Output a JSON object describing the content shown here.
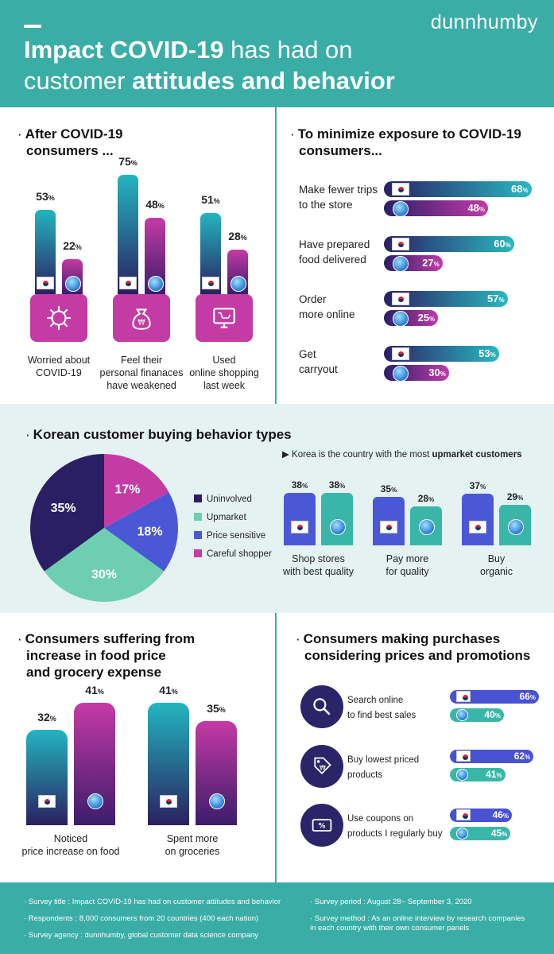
{
  "header": {
    "brand": "dunnhumby",
    "title_bold": "Impact COVID-19",
    "title_rest1": " has had on",
    "title_rest2": "customer ",
    "title_bold2": "attitudes and behavior"
  },
  "colors": {
    "teal": "#3aada6",
    "magenta": "#c43ba6",
    "navy": "#2a1f66",
    "blue": "#4a58d6"
  },
  "after_covid": {
    "heading_l1": "After COVID-19",
    "heading_l2": "consumers ...",
    "bullet": "·",
    "pct_sign": "%",
    "items": [
      {
        "label_l1": "Worried about",
        "label_l2": "COVID-19",
        "label_l3": "",
        "korea": 53,
        "global": 22,
        "icon": "virus-icon"
      },
      {
        "label_l1": "Feel  their",
        "label_l2": "personal finanaces",
        "label_l3": "have weakened",
        "korea": 75,
        "global": 48,
        "icon": "money-bag-icon"
      },
      {
        "label_l1": "Used",
        "label_l2": "online shopping",
        "label_l3": "last week",
        "korea": 51,
        "global": 28,
        "icon": "online-shop-icon"
      }
    ]
  },
  "minimize": {
    "heading_l1": "To minimize exposure to COVID-19",
    "heading_l2": "consumers...",
    "items": [
      {
        "label_l1": "Make fewer trips",
        "label_l2": "to the store",
        "korea": 68,
        "global": 48
      },
      {
        "label_l1": "Have prepared",
        "label_l2": "food delivered",
        "korea": 60,
        "global": 27
      },
      {
        "label_l1": "Order",
        "label_l2": "more online",
        "korea": 57,
        "global": 25
      },
      {
        "label_l1": "Get",
        "label_l2": "carryout",
        "korea": 53,
        "global": 30
      }
    ]
  },
  "korean_types": {
    "heading": "Korean customer buying behavior types",
    "note_prefix": "▶ Korea is the country with the most ",
    "note_bold": "upmarket customers",
    "pie": [
      {
        "name": "Uninvolved",
        "value": 35,
        "color": "#2b1f63"
      },
      {
        "name": "Upmarket",
        "value": 30,
        "color": "#6ecfb0"
      },
      {
        "name": "Price sensitive",
        "value": 18,
        "color": "#4a58d6"
      },
      {
        "name": "Careful shopper",
        "value": 17,
        "color": "#c43ba6"
      }
    ],
    "upmarket": [
      {
        "label_l1": "Shop stores",
        "label_l2": "with best quality",
        "korea": 38,
        "global": 38
      },
      {
        "label_l1": "Pay more",
        "label_l2": "for quality",
        "korea": 35,
        "global": 28
      },
      {
        "label_l1": "Buy",
        "label_l2": "organic",
        "korea": 37,
        "global": 29
      }
    ]
  },
  "suffering": {
    "heading_l1": "Consumers suffering from",
    "heading_l2": "increase in food price",
    "heading_l3": "and grocery expense",
    "items": [
      {
        "label_l1": "Noticed",
        "label_l2": "price increase on food",
        "korea": 32,
        "global": 41
      },
      {
        "label_l1": "Spent more",
        "label_l2": "on groceries",
        "korea": 41,
        "global": 35
      }
    ]
  },
  "purchases": {
    "heading_l1": "Consumers making purchases",
    "heading_l2": "considering prices and promotions",
    "items": [
      {
        "label_l1": "Search online",
        "label_l2": "to find best sales",
        "korea": 66,
        "global": 40,
        "icon": "magnifier-icon"
      },
      {
        "label_l1": "Buy lowest priced",
        "label_l2": "products",
        "korea": 62,
        "global": 41,
        "icon": "price-tag-icon"
      },
      {
        "label_l1": "Use coupons on",
        "label_l2": "products I regularly buy",
        "korea": 46,
        "global": 45,
        "icon": "coupon-icon"
      }
    ]
  },
  "footer": {
    "notes_left": [
      "· Survey title : Impact COVID-19 has had on customer attitudes and behavior",
      "· Respondents : 8,000 consumers from 20 countries (400 each nation)",
      "· Survey agency : dunnhumby, global customer data science company"
    ],
    "period": "· Survey period : August 28~ September 3, 2020",
    "method_l1": "· Survey method : As an online interview by research companies",
    "method_l2": "  in each country with their own consumer panels"
  },
  "chart_data": [
    {
      "type": "bar",
      "title": "After COVID-19 consumers ...",
      "categories": [
        "Worried about COVID-19",
        "Feel their personal finanaces have weakened",
        "Used online shopping last week"
      ],
      "series": [
        {
          "name": "Korea",
          "values": [
            53,
            75,
            51
          ]
        },
        {
          "name": "Global",
          "values": [
            22,
            48,
            28
          ]
        }
      ],
      "ylim": [
        0,
        100
      ]
    },
    {
      "type": "bar",
      "title": "To minimize exposure to COVID-19 consumers...",
      "categories": [
        "Make fewer trips to the store",
        "Have prepared food delivered",
        "Order more online",
        "Get carryout"
      ],
      "series": [
        {
          "name": "Korea",
          "values": [
            68,
            60,
            57,
            53
          ]
        },
        {
          "name": "Global",
          "values": [
            48,
            27,
            25,
            30
          ]
        }
      ],
      "ylim": [
        0,
        100
      ]
    },
    {
      "type": "pie",
      "title": "Korean customer buying behavior types",
      "categories": [
        "Uninvolved",
        "Upmarket",
        "Price sensitive",
        "Careful shopper"
      ],
      "values": [
        35,
        30,
        18,
        17
      ]
    },
    {
      "type": "bar",
      "title": "Korea is the country with the most upmarket customers",
      "categories": [
        "Shop stores with best quality",
        "Pay more for quality",
        "Buy organic"
      ],
      "series": [
        {
          "name": "Korea",
          "values": [
            38,
            35,
            37
          ]
        },
        {
          "name": "Global",
          "values": [
            38,
            28,
            29
          ]
        }
      ],
      "ylim": [
        0,
        50
      ]
    },
    {
      "type": "bar",
      "title": "Consumers suffering from increase in food price and grocery expense",
      "categories": [
        "Noticed price increase on food",
        "Spent more on groceries"
      ],
      "series": [
        {
          "name": "Korea",
          "values": [
            32,
            41
          ]
        },
        {
          "name": "Global",
          "values": [
            41,
            35
          ]
        }
      ],
      "ylim": [
        0,
        50
      ]
    },
    {
      "type": "bar",
      "title": "Consumers making purchases considering prices and promotions",
      "categories": [
        "Search online to find best sales",
        "Buy lowest priced products",
        "Use coupons on products I regularly buy"
      ],
      "series": [
        {
          "name": "Korea",
          "values": [
            66,
            62,
            46
          ]
        },
        {
          "name": "Global",
          "values": [
            40,
            41,
            45
          ]
        }
      ],
      "ylim": [
        0,
        100
      ]
    }
  ]
}
